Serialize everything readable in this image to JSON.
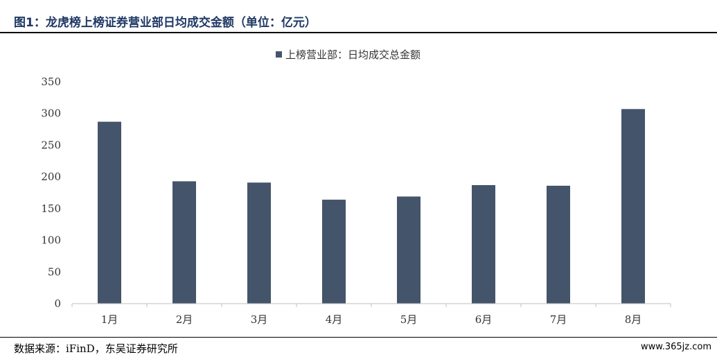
{
  "figure": {
    "title": "图1：龙虎榜上榜证券营业部日均成交金额（单位：亿元）",
    "source": "数据来源：iFinD，东吴证券研究所",
    "watermark": "www.365jz.com"
  },
  "colors": {
    "bar": "#44546a",
    "title": "#1f3864",
    "axis": "#bfbfbf"
  },
  "chart_data": {
    "type": "bar",
    "categories": [
      "1月",
      "2月",
      "3月",
      "4月",
      "5月",
      "6月",
      "7月",
      "8月"
    ],
    "series": [
      {
        "name": "上榜营业部：日均成交总金额",
        "values": [
          287,
          193,
          191,
          164,
          169,
          187,
          186,
          307
        ]
      }
    ],
    "ylim": [
      0,
      350
    ],
    "yticks": [
      0,
      50,
      100,
      150,
      200,
      250,
      300,
      350
    ],
    "grid": false,
    "legend_position": "top-center"
  }
}
